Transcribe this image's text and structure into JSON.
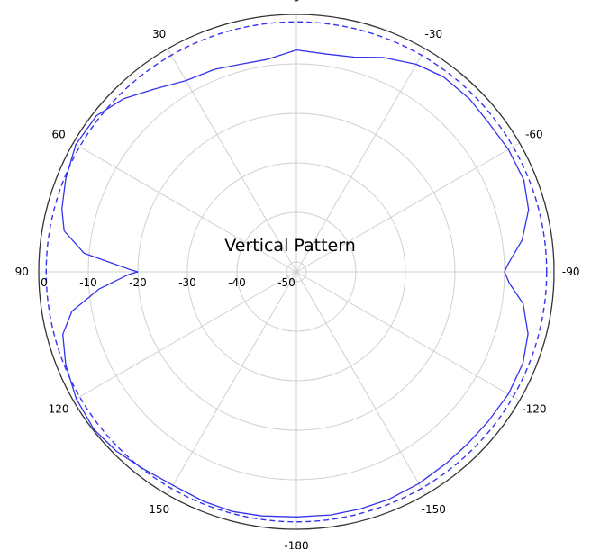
{
  "chart_data": {
    "type": "polar-line",
    "title": "Vertical Pattern",
    "angle_unit": "degrees",
    "angle_direction": "clockwise-negative",
    "angle_ticks": [
      "0",
      "-30",
      "-60",
      "-90",
      "-120",
      "-150",
      "-180",
      "150",
      "120",
      "90",
      "60",
      "30"
    ],
    "radial_ticks": [
      "0",
      "-10",
      "-20",
      "-30",
      "-40",
      "-50"
    ],
    "radial_range": [
      -52,
      0
    ],
    "grid": true,
    "series": [
      {
        "style": "solid",
        "color": "#3333ee",
        "points": [
          {
            "angle": 0,
            "value": -7.2
          },
          {
            "angle": -8,
            "value": -7.6
          },
          {
            "angle": -15,
            "value": -7.1
          },
          {
            "angle": -22,
            "value": -5.3
          },
          {
            "angle": -30,
            "value": -3.6
          },
          {
            "angle": -37,
            "value": -2.7
          },
          {
            "angle": -45,
            "value": -2.6
          },
          {
            "angle": -52,
            "value": -2.9
          },
          {
            "angle": -60,
            "value": -2.6
          },
          {
            "angle": -68,
            "value": -2.5
          },
          {
            "angle": -75,
            "value": -3.5
          },
          {
            "angle": -82,
            "value": -6.0
          },
          {
            "angle": -88,
            "value": -9.3
          },
          {
            "angle": -90,
            "value": -10.0
          },
          {
            "angle": -93,
            "value": -9.0
          },
          {
            "angle": -98,
            "value": -5.8
          },
          {
            "angle": -105,
            "value": -3.6
          },
          {
            "angle": -112,
            "value": -2.7
          },
          {
            "angle": -120,
            "value": -2.6
          },
          {
            "angle": -128,
            "value": -2.9
          },
          {
            "angle": -135,
            "value": -3.0
          },
          {
            "angle": -142,
            "value": -2.9
          },
          {
            "angle": -150,
            "value": -2.6
          },
          {
            "angle": -158,
            "value": -2.4
          },
          {
            "angle": -165,
            "value": -2.4
          },
          {
            "angle": -172,
            "value": -2.4
          },
          {
            "angle": -180,
            "value": -2.5
          },
          {
            "angle": 172,
            "value": -2.2
          },
          {
            "angle": 165,
            "value": -1.9
          },
          {
            "angle": 158,
            "value": -2.0
          },
          {
            "angle": 150,
            "value": -2.2
          },
          {
            "angle": 142,
            "value": -1.6
          },
          {
            "angle": 135,
            "value": -0.7
          },
          {
            "angle": 128,
            "value": -0.2
          },
          {
            "angle": 120,
            "value": -0.7
          },
          {
            "angle": 112,
            "value": -1.8
          },
          {
            "angle": 105,
            "value": -3.2
          },
          {
            "angle": 100,
            "value": -6.0
          },
          {
            "angle": 95,
            "value": -12.0
          },
          {
            "angle": 91,
            "value": -18.0
          },
          {
            "angle": 90,
            "value": -20.0
          },
          {
            "angle": 89,
            "value": -18.0
          },
          {
            "angle": 85,
            "value": -9.0
          },
          {
            "angle": 80,
            "value": -4.4
          },
          {
            "angle": 75,
            "value": -3.0
          },
          {
            "angle": 68,
            "value": -1.8
          },
          {
            "angle": 60,
            "value": -0.6
          },
          {
            "angle": 52,
            "value": -0.8
          },
          {
            "angle": 45,
            "value": -2.6
          },
          {
            "angle": 38,
            "value": -5.2
          },
          {
            "angle": 30,
            "value": -7.4
          },
          {
            "angle": 22,
            "value": -7.9
          },
          {
            "angle": 15,
            "value": -8.6
          },
          {
            "angle": 8,
            "value": -8.7
          },
          {
            "angle": 0,
            "value": -7.2
          }
        ]
      },
      {
        "style": "dashed",
        "color": "#3333ee",
        "points": [
          {
            "angle": 0,
            "value": -1.5
          },
          {
            "angle": 90,
            "value": -1.5
          },
          {
            "angle": 180,
            "value": -1.5
          },
          {
            "angle": 270,
            "value": -1.5
          }
        ]
      }
    ]
  }
}
